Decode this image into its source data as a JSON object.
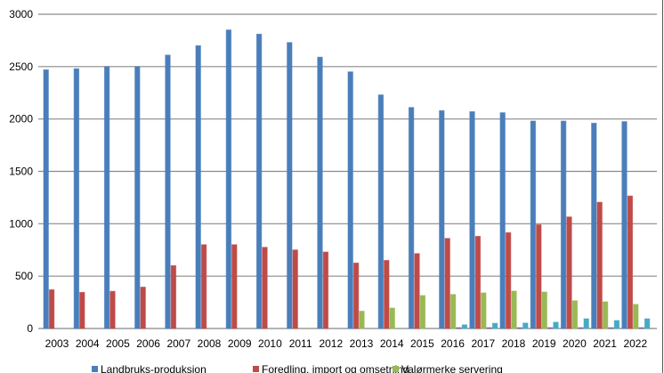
{
  "chart_data": {
    "type": "bar",
    "title": "",
    "xlabel": "",
    "ylabel": "",
    "ylim": [
      0,
      3000
    ],
    "yticks": [
      "0",
      "500",
      "1000",
      "1500",
      "2000",
      "2500",
      "3000"
    ],
    "grid": true,
    "legend_position": "bottom",
    "categories": [
      "2003",
      "2004",
      "2005",
      "2006",
      "2007",
      "2008",
      "2009",
      "2010",
      "2011",
      "2012",
      "2013",
      "2014",
      "2015",
      "2016",
      "2017",
      "2018",
      "2019",
      "2020",
      "2021",
      "2022"
    ],
    "series": [
      {
        "name": "Landbruks-produksjon",
        "color": "#4a7ebb",
        "values": [
          2470,
          2480,
          2500,
          2500,
          2610,
          2700,
          2850,
          2810,
          2730,
          2590,
          2450,
          2230,
          2110,
          2080,
          2070,
          2060,
          1980,
          1980,
          1960,
          1975
        ]
      },
      {
        "name": "Foredling, import og omsetning",
        "color": "#be4b48",
        "values": [
          370,
          345,
          355,
          395,
          600,
          800,
          800,
          775,
          750,
          730,
          625,
          650,
          715,
          860,
          880,
          915,
          990,
          1065,
          1205,
          1265
        ]
      },
      {
        "name": "Valørmerke servering",
        "color": "#98b954",
        "values": [
          0,
          0,
          0,
          0,
          0,
          0,
          0,
          0,
          0,
          0,
          165,
          195,
          315,
          325,
          340,
          357,
          348,
          265,
          255,
          230
        ]
      },
      {
        "name": "",
        "color": "#7d60a0",
        "values": [
          0,
          0,
          0,
          0,
          0,
          0,
          0,
          0,
          0,
          0,
          0,
          0,
          0,
          8,
          8,
          8,
          8,
          8,
          8,
          8
        ]
      },
      {
        "name": "",
        "color": "#46aac5",
        "values": [
          0,
          0,
          0,
          0,
          0,
          0,
          0,
          0,
          0,
          0,
          0,
          0,
          0,
          35,
          50,
          52,
          60,
          93,
          76,
          93
        ]
      }
    ]
  }
}
